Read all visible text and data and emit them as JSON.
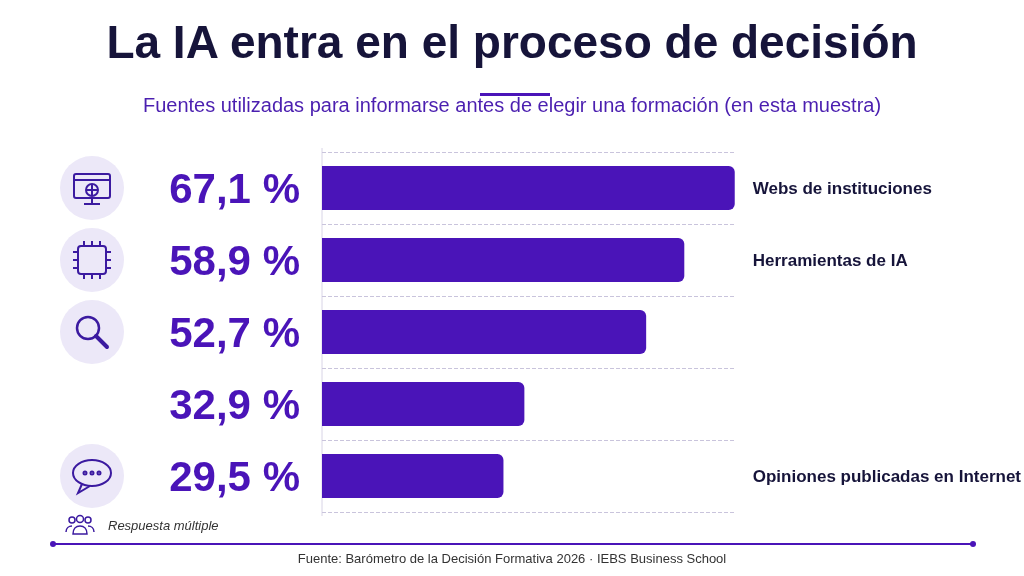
{
  "chart_data": {
    "type": "bar",
    "orientation": "horizontal",
    "title": "La IA entra en el proceso de decisión",
    "subtitle": "Fuentes utilizadas para informarse antes de elegir una formación (en esta muestra)",
    "categories": [
      "Webs de instituciones",
      "Herramientas de IA",
      null,
      null,
      "Opiniones publicadas en Internet"
    ],
    "values": [
      67.1,
      58.9,
      52.7,
      32.9,
      29.5
    ],
    "value_labels": [
      "67,1 %",
      "58,9 %",
      "52,7 %",
      "32,9 %",
      "29,5 %"
    ],
    "color": "#4a14b8",
    "grid": "y",
    "annotations": [
      "Respuesta múltiple",
      "Fuente: Barómetro de la Decisión Formativa 2026 · IEBS Business School"
    ]
  }
}
